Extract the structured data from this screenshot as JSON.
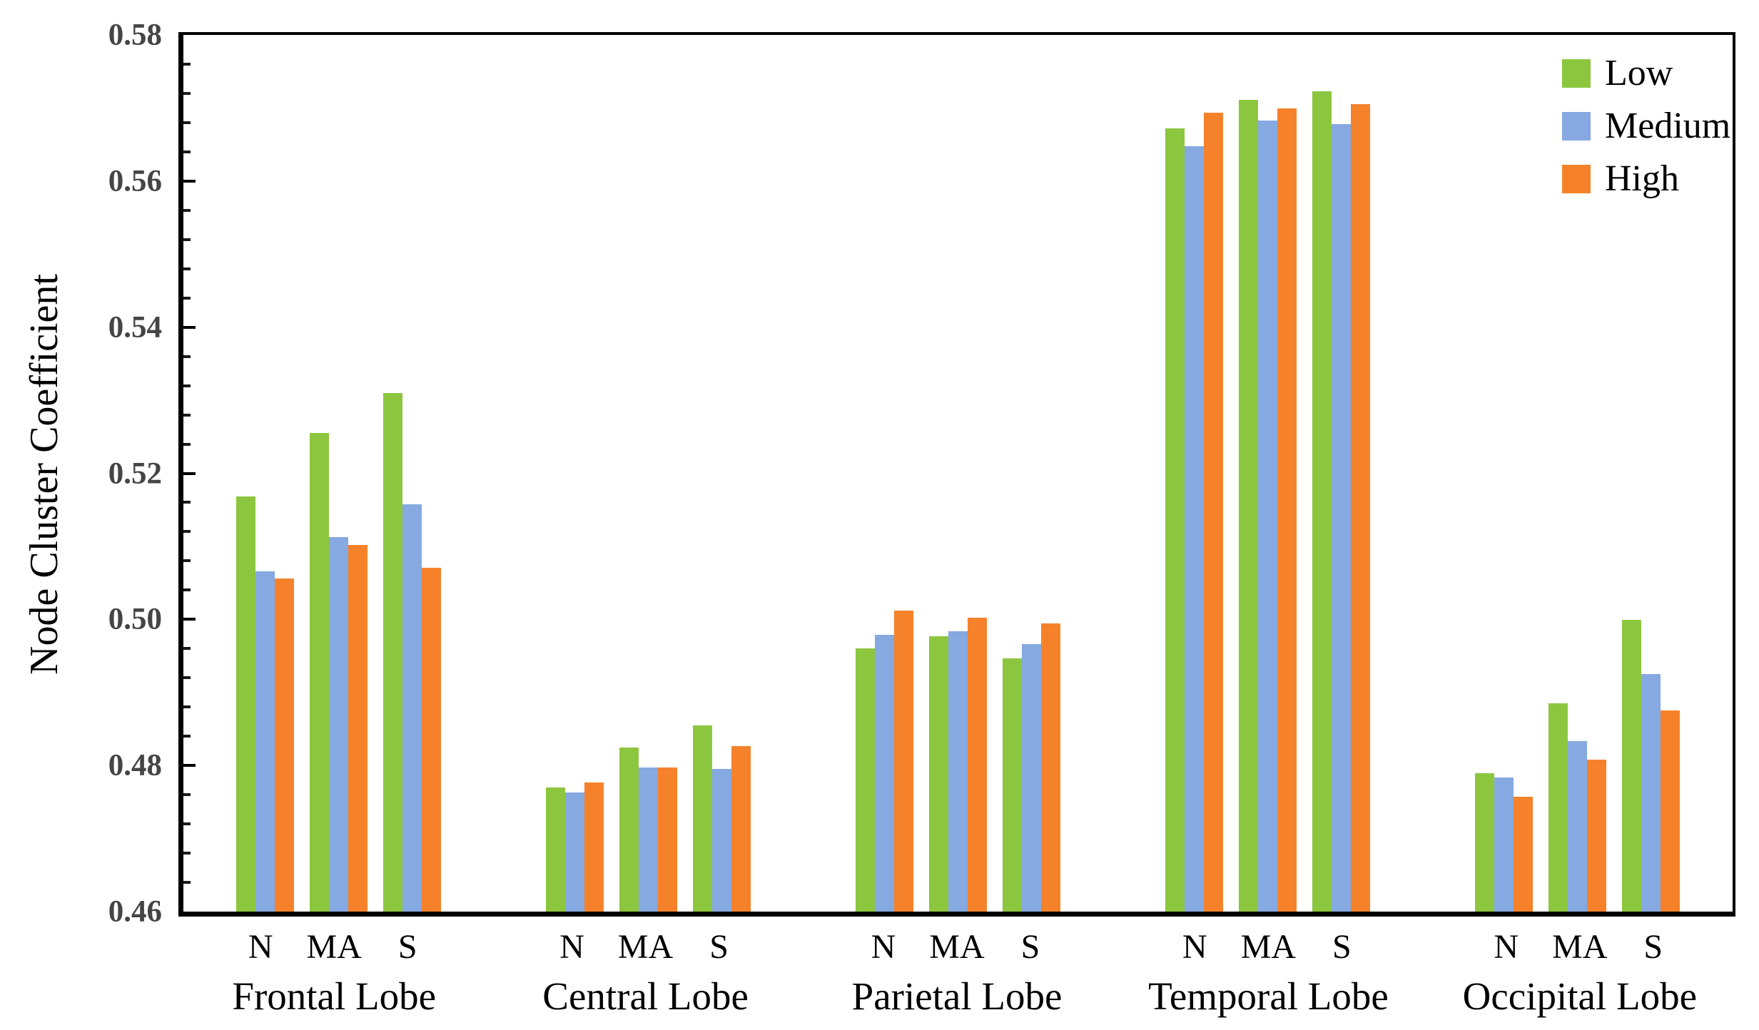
{
  "figure": {
    "ylabel": "Node Cluster Coefficient"
  },
  "chart_data": {
    "type": "bar",
    "title": "",
    "xlabel": "",
    "ylabel": "Node Cluster Coefficient",
    "ylim": [
      0.46,
      0.58
    ],
    "ytick_step": 0.02,
    "yminor_step": 0.004,
    "ytick_labels": [
      "0.46",
      "0.48",
      "0.50",
      "0.52",
      "0.54",
      "0.56",
      "0.58"
    ],
    "grid": false,
    "legend_position": "top-right",
    "groups": [
      "Frontal Lobe",
      "Central Lobe",
      "Parietal Lobe",
      "Temporal Lobe",
      "Occipital Lobe"
    ],
    "subgroups": [
      "N",
      "MA",
      "S"
    ],
    "series": [
      {
        "name": "Low",
        "color": "#8CC63F",
        "values": [
          [
            0.5168,
            0.5255,
            0.531
          ],
          [
            0.477,
            0.4825,
            0.4855
          ],
          [
            0.496,
            0.4977,
            0.4947
          ],
          [
            0.5672,
            0.5711,
            0.5723
          ],
          [
            0.4789,
            0.4885,
            0.4999
          ]
        ]
      },
      {
        "name": "Medium",
        "color": "#85A9E0",
        "values": [
          [
            0.5066,
            0.5113,
            0.5158
          ],
          [
            0.4763,
            0.4797,
            0.4795
          ],
          [
            0.4979,
            0.4984,
            0.4966
          ],
          [
            0.5648,
            0.5683,
            0.5678
          ],
          [
            0.4784,
            0.4833,
            0.4925
          ]
        ]
      },
      {
        "name": "High",
        "color": "#F5822A",
        "values": [
          [
            0.5056,
            0.5102,
            0.5071
          ],
          [
            0.4777,
            0.4797,
            0.4827
          ],
          [
            0.5012,
            0.5002,
            0.4994
          ],
          [
            0.5694,
            0.5699,
            0.5705
          ],
          [
            0.4757,
            0.4808,
            0.4875
          ]
        ]
      }
    ]
  }
}
